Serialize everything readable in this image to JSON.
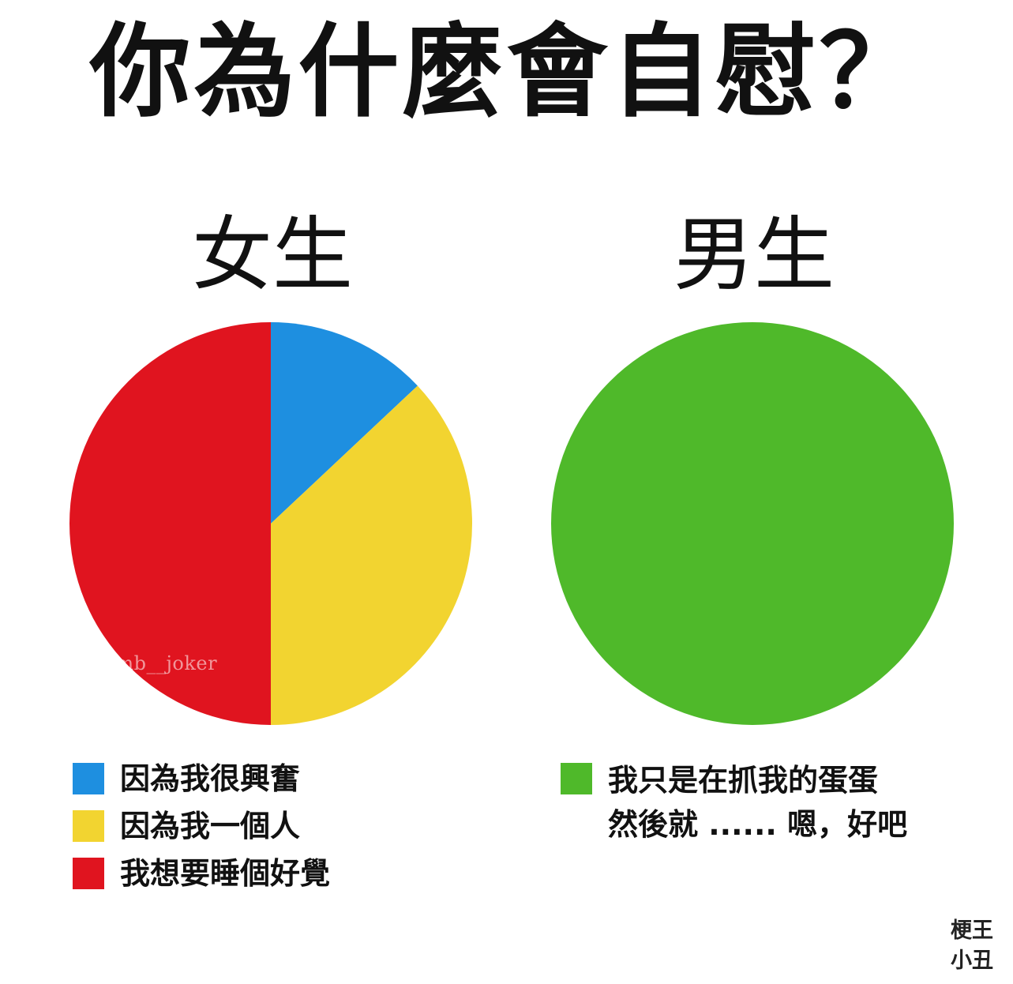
{
  "title": "你為什麼會自慰？",
  "chart_data": [
    {
      "type": "pie",
      "title": "女生",
      "labels": [
        "因為我很興奮",
        "因為我一個人",
        "我想要睡個好覺"
      ],
      "values": [
        13,
        37,
        50
      ],
      "colors": [
        "#1e8fe0",
        "#f2d430",
        "#e0141f"
      ],
      "legend_position": "bottom"
    },
    {
      "type": "pie",
      "title": "男生",
      "labels": [
        "我只是在抓我的蛋蛋\n然後就 ...... 嗯，好吧"
      ],
      "values": [
        100
      ],
      "colors": [
        "#4fb92a"
      ],
      "legend_position": "bottom"
    }
  ],
  "female_legend": [
    {
      "label": "因為我很興奮",
      "color": "#1e8fe0"
    },
    {
      "label": "因為我一個人",
      "color": "#f2d430"
    },
    {
      "label": "我想要睡個好覺",
      "color": "#e0141f"
    }
  ],
  "male_legend": [
    {
      "label_line1": "我只是在抓我的蛋蛋",
      "label_line2": "然後就 ...... 嗯，好吧",
      "color": "#4fb92a"
    }
  ],
  "watermark": "@dumb__joker",
  "corner_stamp": {
    "line1": "梗王",
    "line2": "小丑"
  }
}
